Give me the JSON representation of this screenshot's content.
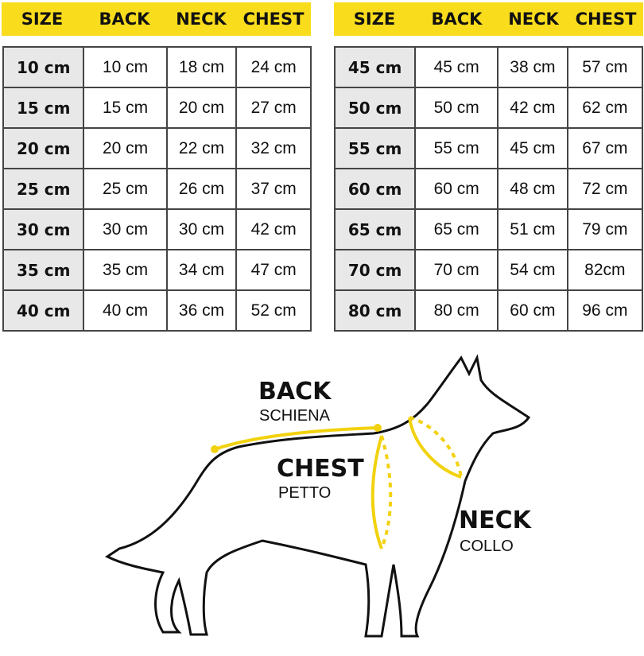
{
  "headers": [
    "SIZE",
    "BACK",
    "NECK",
    "CHEST"
  ],
  "left_table": [
    [
      "10 cm",
      "10 cm",
      "18 cm",
      "24 cm"
    ],
    [
      "15 cm",
      "15 cm",
      "20 cm",
      "27 cm"
    ],
    [
      "20 cm",
      "20 cm",
      "22 cm",
      "32 cm"
    ],
    [
      "25 cm",
      "25 cm",
      "26 cm",
      "37 cm"
    ],
    [
      "30 cm",
      "30 cm",
      "30 cm",
      "42 cm"
    ],
    [
      "35 cm",
      "35 cm",
      "34 cm",
      "47 cm"
    ],
    [
      "40 cm",
      "40 cm",
      "36 cm",
      "52 cm"
    ]
  ],
  "right_table": [
    [
      "45 cm",
      "45 cm",
      "38 cm",
      "57 cm"
    ],
    [
      "50 cm",
      "50 cm",
      "42 cm",
      "62 cm"
    ],
    [
      "55 cm",
      "55 cm",
      "45 cm",
      "67 cm"
    ],
    [
      "60 cm",
      "60 cm",
      "48 cm",
      "72 cm"
    ],
    [
      "65 cm",
      "65 cm",
      "51 cm",
      "79 cm"
    ],
    [
      "70 cm",
      "70 cm",
      "54 cm",
      "82cm"
    ],
    [
      "80 cm",
      "80 cm",
      "60 cm",
      "96 cm"
    ]
  ],
  "diagram": {
    "back": {
      "title": "BACK",
      "subtitle": "SCHIENA"
    },
    "chest": {
      "title": "CHEST",
      "subtitle": "PETTO"
    },
    "neck": {
      "title": "NECK",
      "subtitle": "COLLO"
    }
  },
  "colors": {
    "accent": "#f9dc1c",
    "size_cell": "#e8e8e8"
  }
}
